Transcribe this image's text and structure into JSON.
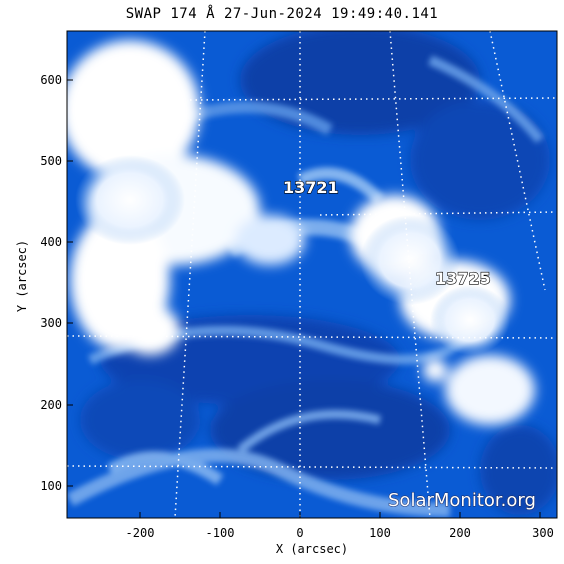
{
  "title": "SWAP 174 Å 27-Jun-2024 19:49:40.141",
  "axes": {
    "xlabel": "X (arcsec)",
    "ylabel": "Y (arcsec)",
    "x_ticks": [
      "-200",
      "-100",
      "0",
      "100",
      "200",
      "300"
    ],
    "y_ticks": [
      "100",
      "200",
      "300",
      "400",
      "500",
      "600"
    ]
  },
  "active_regions": [
    {
      "label": "13721"
    },
    {
      "label": "13725"
    }
  ],
  "watermark": "SolarMonitor.org",
  "colors": {
    "background": "#0a5bd4",
    "deep": "#0b3fa8",
    "bright": "#ffffff",
    "grid": "#ffffff"
  }
}
